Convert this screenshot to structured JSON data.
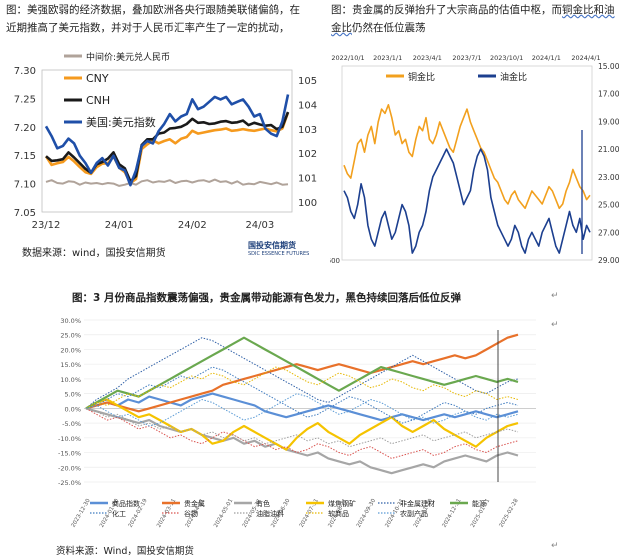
{
  "captions": {
    "fig_left_line1": "图：美强欧弱的经济数据，叠加欧洲各央行跟随美联储偏鸽，在",
    "fig_left_line2": "近期推高了美元指数，并对于人民币汇率产生了一定的扰动，",
    "fig_right_line1": "图：贵金属的反弹抬升了大宗商品的估值中枢，而",
    "fig_right_link": "铜金比和油",
    "fig_right_line2_link": "金比",
    "fig_right_line2": "仍然在低位震荡",
    "fig_bottom": "图：3 月份商品指数震荡偏强，贵金属带动能源有色发力，黑色持续回落后低位反弹",
    "source_left": "数据来源：wind，国投安信期货",
    "source_bottom": "资料来源：Wind，国投安信期货",
    "logo_text": "国投安信期货",
    "logo_sub": "SDIC ESSENCE FUTURES",
    "para_mark": "↵"
  },
  "colors": {
    "cny": "#f59a1e",
    "cnh": "#1a1a1a",
    "dxy": "#1f4fa8",
    "mid": "#b0a39a",
    "copper_gold": "#f2a01e",
    "oil_gold": "#1c3f8f",
    "grid": "#d9d9d9"
  },
  "chart_data": [
    {
      "id": "fx_chart",
      "type": "line",
      "title": "",
      "x_ticks": [
        "23/12",
        "24/01",
        "24/02",
        "24/03"
      ],
      "left_axis": {
        "ylim": [
          7.05,
          7.3
        ],
        "ticks": [
          "7.05",
          "7.10",
          "7.15",
          "7.20",
          "7.25",
          "7.30"
        ]
      },
      "right_axis": {
        "ylim": [
          99.6,
          105.4
        ],
        "ticks": [
          "100",
          "101",
          "102",
          "103",
          "104",
          "105"
        ]
      },
      "legend": [
        {
          "name": "中间价:美元兑人民币",
          "color_key": "mid"
        },
        {
          "name": "CNY",
          "color_key": "cny"
        },
        {
          "name": "CNH",
          "color_key": "cnh"
        },
        {
          "name": "美国:美元指数",
          "color_key": "dxy"
        }
      ],
      "series": [
        {
          "name": "中间价:美元兑人民币",
          "axis": "left",
          "color_key": "mid",
          "values": [
            7.103,
            7.106,
            7.101,
            7.1,
            7.104,
            7.103,
            7.098,
            7.102,
            7.1,
            7.101,
            7.099,
            7.101,
            7.1,
            7.096,
            7.098,
            7.101,
            7.098,
            7.104,
            7.106,
            7.102,
            7.104,
            7.103,
            7.106,
            7.101,
            7.104,
            7.105,
            7.102,
            7.105,
            7.106,
            7.103,
            7.107,
            7.103,
            7.104,
            7.1,
            7.104,
            7.098,
            7.1,
            7.099,
            7.103,
            7.101,
            7.099,
            7.102,
            7.098,
            7.099
          ]
        },
        {
          "name": "CNY",
          "axis": "left",
          "color_key": "cny",
          "values": [
            7.148,
            7.133,
            7.136,
            7.138,
            7.147,
            7.139,
            7.129,
            7.12,
            7.117,
            7.129,
            7.135,
            7.136,
            7.148,
            7.128,
            7.12,
            7.101,
            7.108,
            7.161,
            7.169,
            7.176,
            7.171,
            7.175,
            7.178,
            7.171,
            7.179,
            7.182,
            7.193,
            7.188,
            7.19,
            7.192,
            7.194,
            7.195,
            7.197,
            7.193,
            7.194,
            7.196,
            7.194,
            7.193,
            7.195,
            7.197,
            7.194,
            7.192,
            7.197,
            7.225
          ]
        },
        {
          "name": "CNH",
          "axis": "left",
          "color_key": "cnh",
          "values": [
            7.148,
            7.14,
            7.141,
            7.143,
            7.155,
            7.146,
            7.136,
            7.126,
            7.119,
            7.134,
            7.138,
            7.144,
            7.155,
            7.134,
            7.127,
            7.104,
            7.113,
            7.168,
            7.178,
            7.178,
            7.188,
            7.19,
            7.197,
            7.198,
            7.2,
            7.205,
            7.214,
            7.207,
            7.208,
            7.205,
            7.206,
            7.209,
            7.21,
            7.207,
            7.208,
            7.211,
            7.203,
            7.207,
            7.204,
            7.202,
            7.203,
            7.196,
            7.2,
            7.226
          ]
        },
        {
          "name": "美国:美元指数",
          "axis": "right",
          "color_key": "dxy",
          "values": [
            103.1,
            102.7,
            102.2,
            102.3,
            102.6,
            102.4,
            101.9,
            101.6,
            101.2,
            101.6,
            101.8,
            101.5,
            101.9,
            101.4,
            101.3,
            100.7,
            101.3,
            102.3,
            102.5,
            102.4,
            102.9,
            103.2,
            103.6,
            103.3,
            103.5,
            103.6,
            104.2,
            103.8,
            103.9,
            104.1,
            104.3,
            104.2,
            104.3,
            104.0,
            104.1,
            104.2,
            103.9,
            103.5,
            103.6,
            103.0,
            102.8,
            102.7,
            103.3,
            104.4
          ]
        }
      ]
    },
    {
      "id": "ratio_chart",
      "type": "line",
      "title": "",
      "x_ticks": [
        "2022/10/1",
        "2023/1/1",
        "2023/4/1",
        "2023/7/1",
        "2023/10/1",
        "2024/1/1",
        "2024/4/1"
      ],
      "left_axis": {
        "ylim": [
          600,
          1050
        ],
        "ticks": [
          "600",
          "",
          "",
          "",
          ""
        ],
        "reversed": false
      },
      "right_axis": {
        "ylim": [
          29,
          15
        ],
        "reversed": true,
        "ticks": [
          "15.00",
          "17.00",
          "19.00",
          "21.00",
          "23.00",
          "25.00",
          "27.00",
          "29.00"
        ]
      },
      "legend": [
        {
          "name": "铜金比",
          "color_key": "copper_gold"
        },
        {
          "name": "油金比",
          "color_key": "oil_gold"
        }
      ],
      "series": [
        {
          "name": "铜金比",
          "axis": "left",
          "color_key": "copper_gold",
          "values": [
            820,
            800,
            790,
            830,
            870,
            880,
            850,
            890,
            910,
            870,
            920,
            950,
            940,
            960,
            930,
            890,
            900,
            870,
            880,
            850,
            840,
            880,
            910,
            900,
            930,
            880,
            870,
            890,
            920,
            900,
            880,
            860,
            850,
            880,
            910,
            930,
            950,
            920,
            900,
            880,
            860,
            850,
            830,
            810,
            790,
            780,
            760,
            740,
            730,
            750,
            760,
            740,
            730,
            720,
            740,
            760,
            750,
            740,
            730,
            750,
            770,
            760,
            740,
            720,
            730,
            760,
            780,
            810,
            790,
            770,
            760,
            740,
            750
          ]
        },
        {
          "name": "油金比",
          "axis": "right",
          "color_key": "oil_gold",
          "values": [
            24.0,
            24.5,
            25.5,
            26.0,
            25.0,
            23.5,
            24.5,
            26.5,
            27.5,
            28.0,
            27.0,
            26.0,
            25.5,
            26.5,
            27.5,
            27.0,
            26.0,
            25.0,
            25.5,
            26.5,
            28.5,
            28.0,
            27.0,
            26.5,
            25.5,
            24.0,
            23.0,
            22.5,
            22.0,
            21.5,
            21.0,
            21.5,
            22.0,
            23.0,
            24.0,
            25.0,
            24.5,
            24.0,
            22.5,
            21.5,
            21.0,
            21.5,
            22.5,
            24.5,
            25.5,
            26.5,
            27.0,
            27.5,
            28.0,
            27.5,
            26.5,
            27.0,
            28.0,
            28.5,
            27.5,
            27.0,
            27.5,
            28.0,
            27.0,
            26.5,
            26.0,
            27.0,
            28.0,
            28.5,
            27.5,
            26.5,
            25.5,
            26.5,
            27.0,
            26.0,
            27.5,
            26.5,
            27.0
          ]
        }
      ]
    },
    {
      "id": "commodity_chart",
      "type": "line",
      "title": "",
      "ylim": [
        -25,
        30
      ],
      "y_ticks": [
        "30.0%",
        "25.0%",
        "20.0%",
        "15.0%",
        "10.0%",
        "5.0%",
        "0.0%",
        "-5.0%",
        "-10.0%",
        "-15.0%",
        "-20.0%",
        "-25.0%"
      ],
      "x_ticks": [
        "2023-12-30",
        "2024-01-20",
        "2024-02-19",
        "2024-03-11",
        "2024-04-01",
        "2024-05-01",
        "2024-05-31",
        "2024-06-30",
        "2024-07-31",
        "2024-08-31",
        "2024-09-30",
        "2024-10-31",
        "2024-11-30",
        "2024-12-31",
        "2025-01-31",
        "2025-02-28"
      ],
      "legend": [
        {
          "name": "商品指数",
          "color": "#5b8fd6",
          "dash": "solid"
        },
        {
          "name": "贵金属",
          "color": "#e8712a",
          "dash": "solid"
        },
        {
          "name": "有色",
          "color": "#a6a6a6",
          "dash": "solid"
        },
        {
          "name": "煤焦钢矿",
          "color": "#f5c300",
          "dash": "solid"
        },
        {
          "name": "非金属建材",
          "color": "#2e5fa6",
          "dash": "dot"
        },
        {
          "name": "能源",
          "color": "#6aa84f",
          "dash": "solid"
        },
        {
          "name": "化工",
          "color": "#3f7bbf",
          "dash": "dot"
        },
        {
          "name": "谷物",
          "color": "#d9534f",
          "dash": "dot"
        },
        {
          "name": "油脂油料",
          "color": "#9e9e9e",
          "dash": "dot"
        },
        {
          "name": "软商品",
          "color": "#e6b800",
          "dash": "dot"
        },
        {
          "name": "农副产品",
          "color": "#5b9bd5",
          "dash": "dot"
        }
      ],
      "series": [
        {
          "name": "商品指数",
          "values": [
            0,
            1,
            2,
            1,
            3,
            2,
            4,
            3,
            2,
            1,
            3,
            4,
            5,
            4,
            3,
            2,
            1,
            -1,
            -2,
            -3,
            -2,
            -1,
            0,
            1,
            0,
            -1,
            -2,
            -3,
            -4,
            -3,
            -2,
            -3,
            -4,
            -3,
            -2,
            -3,
            -2,
            -1,
            -2,
            -3,
            -2,
            -1
          ]
        },
        {
          "name": "贵金属",
          "values": [
            0,
            1,
            2,
            1,
            0,
            -1,
            0,
            1,
            2,
            3,
            4,
            5,
            6,
            8,
            9,
            10,
            11,
            12,
            13,
            14,
            15,
            14,
            13,
            14,
            15,
            14,
            13,
            12,
            13,
            14,
            15,
            16,
            15,
            16,
            17,
            18,
            17,
            18,
            20,
            22,
            24,
            25
          ]
        },
        {
          "name": "有色",
          "values": [
            0,
            -1,
            -2,
            -3,
            -4,
            -5,
            -4,
            -6,
            -7,
            -8,
            -7,
            -9,
            -10,
            -11,
            -10,
            -12,
            -11,
            -13,
            -12,
            -14,
            -15,
            -16,
            -15,
            -17,
            -18,
            -19,
            -18,
            -20,
            -21,
            -22,
            -21,
            -20,
            -19,
            -20,
            -18,
            -17,
            -16,
            -17,
            -18,
            -16,
            -15,
            -16
          ]
        },
        {
          "name": "煤焦钢矿",
          "values": [
            0,
            2,
            3,
            1,
            -1,
            -3,
            -2,
            -4,
            -6,
            -8,
            -7,
            -9,
            -12,
            -11,
            -8,
            -6,
            -8,
            -10,
            -12,
            -14,
            -10,
            -7,
            -5,
            -8,
            -10,
            -12,
            -9,
            -7,
            -5,
            -3,
            -6,
            -8,
            -6,
            -4,
            -7,
            -9,
            -11,
            -13,
            -10,
            -8,
            -6,
            -5
          ]
        },
        {
          "name": "非金属建材",
          "values": [
            0,
            3,
            5,
            7,
            10,
            12,
            14,
            16,
            18,
            20,
            22,
            24,
            23,
            21,
            19,
            17,
            15,
            13,
            11,
            9,
            7,
            5,
            3,
            2,
            4,
            6,
            8,
            10,
            12,
            14,
            16,
            18,
            16,
            14,
            12,
            10,
            8,
            6,
            5,
            7,
            9,
            10
          ]
        },
        {
          "name": "能源",
          "values": [
            0,
            2,
            4,
            6,
            5,
            4,
            6,
            8,
            10,
            12,
            14,
            16,
            18,
            20,
            22,
            24,
            22,
            20,
            18,
            16,
            14,
            12,
            10,
            8,
            6,
            8,
            10,
            12,
            14,
            13,
            12,
            11,
            10,
            9,
            8,
            9,
            10,
            11,
            10,
            9,
            10,
            9
          ]
        },
        {
          "name": "化工",
          "values": [
            0,
            1,
            3,
            5,
            4,
            6,
            8,
            7,
            9,
            11,
            10,
            12,
            14,
            13,
            11,
            9,
            7,
            5,
            3,
            1,
            -1,
            -3,
            -2,
            0,
            2,
            4,
            3,
            1,
            -1,
            -3,
            -5,
            -4,
            -2,
            0,
            2,
            1,
            -1,
            -2,
            0,
            1,
            2,
            1
          ]
        },
        {
          "name": "谷物",
          "values": [
            0,
            -2,
            -4,
            -3,
            -5,
            -7,
            -6,
            -8,
            -10,
            -9,
            -11,
            -12,
            -10,
            -8,
            -9,
            -11,
            -13,
            -12,
            -14,
            -13,
            -15,
            -14,
            -12,
            -13,
            -15,
            -16,
            -14,
            -13,
            -15,
            -17,
            -16,
            -15,
            -14,
            -16,
            -15,
            -13,
            -12,
            -14,
            -15,
            -13,
            -12,
            -11
          ]
        },
        {
          "name": "油脂油料",
          "values": [
            0,
            -1,
            -3,
            -2,
            -4,
            -6,
            -5,
            -7,
            -6,
            -8,
            -7,
            -9,
            -8,
            -10,
            -9,
            -11,
            -10,
            -12,
            -11,
            -10,
            -9,
            -11,
            -10,
            -12,
            -11,
            -13,
            -12,
            -11,
            -10,
            -12,
            -11,
            -10,
            -9,
            -11,
            -10,
            -9,
            -8,
            -10,
            -9,
            -8,
            -7,
            -8
          ]
        },
        {
          "name": "软商品",
          "values": [
            0,
            2,
            1,
            3,
            5,
            4,
            6,
            8,
            7,
            9,
            11,
            10,
            12,
            11,
            9,
            8,
            10,
            12,
            14,
            13,
            11,
            9,
            8,
            10,
            12,
            11,
            9,
            7,
            8,
            10,
            9,
            7,
            6,
            8,
            7,
            5,
            4,
            6,
            5,
            3,
            4,
            3
          ]
        },
        {
          "name": "农副产品",
          "values": [
            0,
            1,
            -1,
            -3,
            -2,
            -4,
            -6,
            -5,
            -3,
            -1,
            1,
            3,
            2,
            0,
            -2,
            -4,
            -3,
            -1,
            1,
            3,
            5,
            4,
            2,
            0,
            -2,
            -1,
            1,
            3,
            2,
            0,
            -2,
            -4,
            -3,
            -5,
            -4,
            -2,
            -1,
            -3,
            -4,
            -2,
            -3,
            -2
          ]
        }
      ]
    }
  ]
}
